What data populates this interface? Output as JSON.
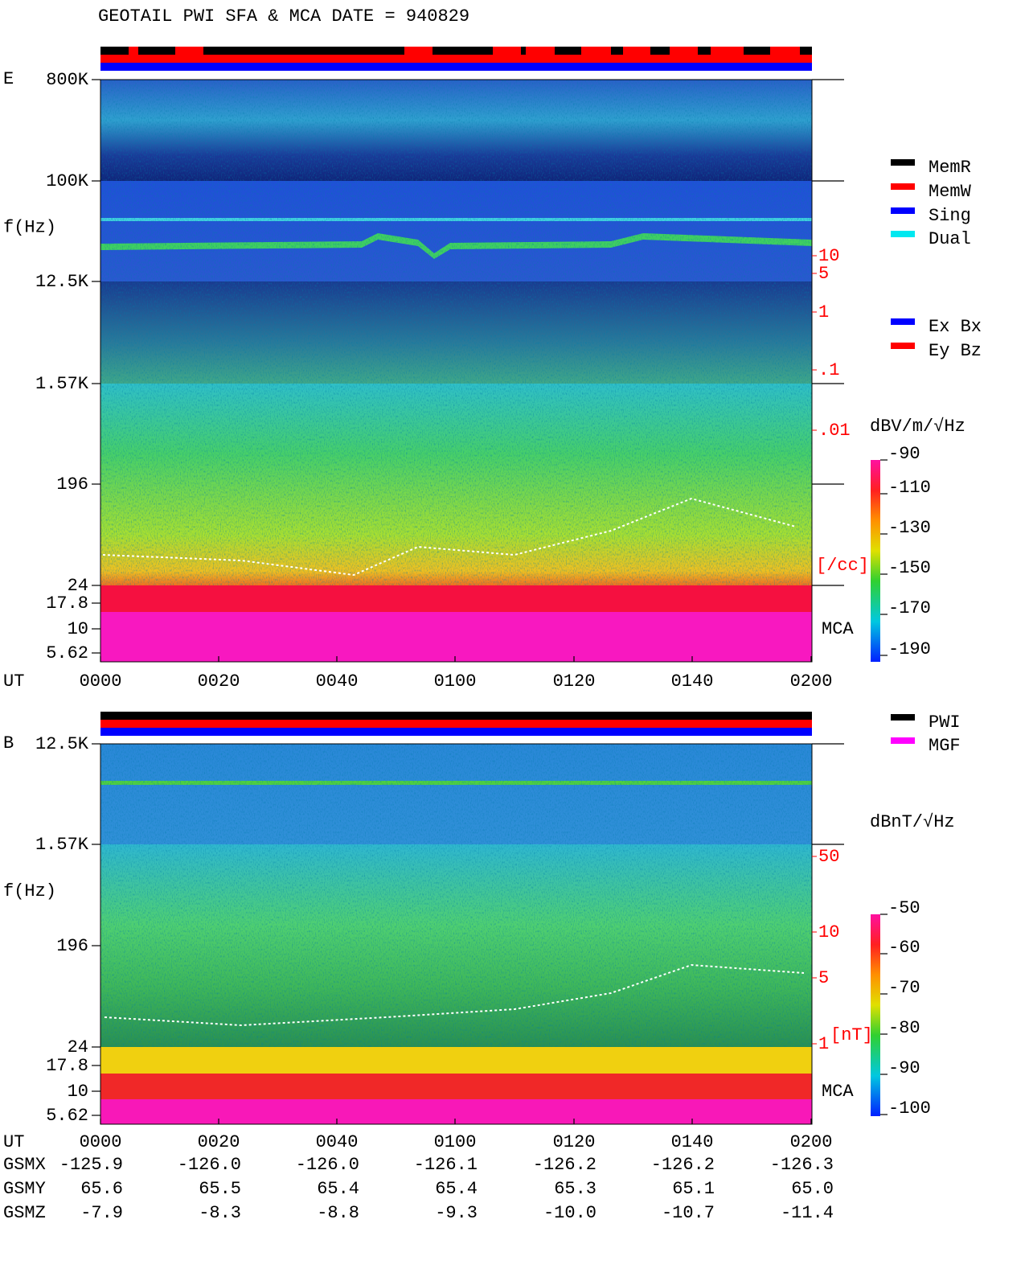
{
  "header": {
    "title": "GEOTAIL  PWI SFA & MCA   DATE = 940829"
  },
  "panel_e": {
    "label": "E",
    "y_axis_label": "f(Hz)",
    "freq_ticks": [
      "800K",
      "100K",
      "12.5K",
      "1.57K",
      "196",
      "24",
      "17.8",
      "10",
      "5.62"
    ],
    "density_ticks": [
      "10",
      "5",
      "1",
      ".1",
      ".01"
    ],
    "density_unit": "[/cc]",
    "mca_label": "MCA",
    "colorbar_title": "dBV/m/√Hz",
    "colorbar_ticks": [
      "-90",
      "-110",
      "-130",
      "-150",
      "-170",
      "-190"
    ],
    "time_label": "UT",
    "time_ticks": [
      "0000",
      "0020",
      "0040",
      "0100",
      "0120",
      "0140",
      "0200"
    ]
  },
  "legend_status": [
    {
      "name": "MemR",
      "color": "#000000"
    },
    {
      "name": "MemW",
      "color": "#ff0000"
    },
    {
      "name": "Sing",
      "color": "#0000ff"
    },
    {
      "name": "Dual",
      "color": "#00e8f0"
    }
  ],
  "legend_mode": [
    {
      "name": "Ex Bx",
      "color": "#0000ff"
    },
    {
      "name": "Ey Bz",
      "color": "#ff0000"
    }
  ],
  "panel_b": {
    "label": "B",
    "y_axis_label": "f(Hz)",
    "freq_ticks": [
      "12.5K",
      "1.57K",
      "196",
      "24",
      "17.8",
      "10",
      "5.62"
    ],
    "field_ticks": [
      "50",
      "10",
      "5",
      "1"
    ],
    "field_unit": "[nT]",
    "mca_label": "MCA",
    "colorbar_title": "dBnT/√Hz",
    "colorbar_ticks": [
      "-50",
      "-60",
      "-70",
      "-80",
      "-90",
      "-100"
    ],
    "time_label": "UT",
    "time_ticks": [
      "0000",
      "0020",
      "0040",
      "0100",
      "0120",
      "0140",
      "0200"
    ]
  },
  "legend_source": [
    {
      "name": "PWI",
      "color": "#000000"
    },
    {
      "name": "MGF",
      "color": "#ff00ff"
    }
  ],
  "orbit": {
    "rows": [
      {
        "name": "GSMX",
        "values": [
          "-125.9",
          "-126.0",
          "-126.0",
          "-126.1",
          "-126.2",
          "-126.2",
          "-126.3"
        ]
      },
      {
        "name": "GSMY",
        "values": [
          "65.6",
          "65.5",
          "65.4",
          "65.4",
          "65.3",
          "65.1",
          "65.0"
        ]
      },
      {
        "name": "GSMZ",
        "values": [
          "-7.9",
          "-8.3",
          "-8.8",
          "-9.3",
          "-10.0",
          "-10.7",
          "-11.4"
        ]
      }
    ]
  }
}
